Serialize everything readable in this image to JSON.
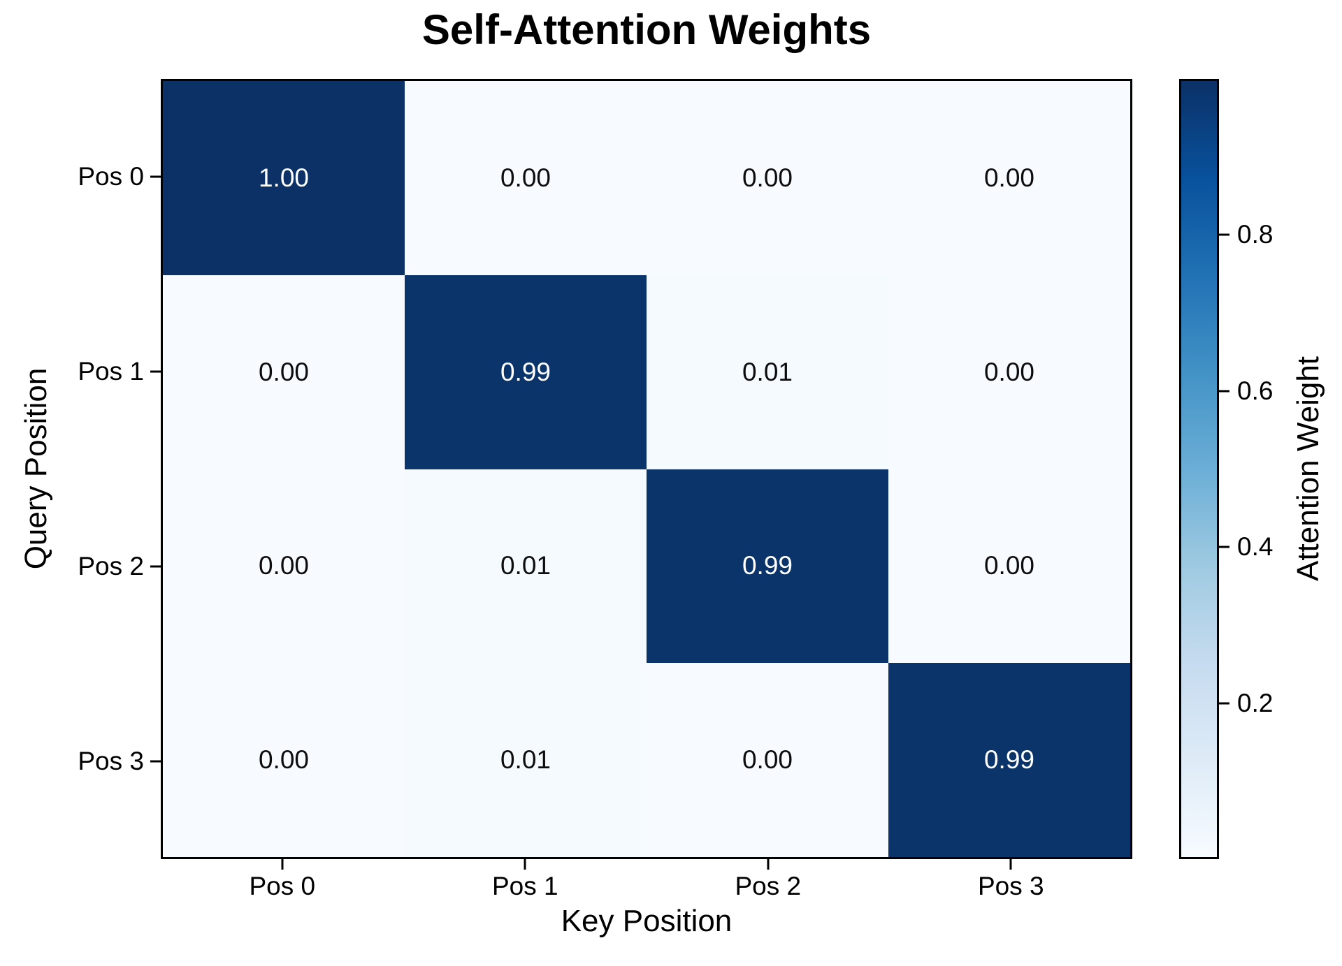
{
  "chart_data": {
    "type": "heatmap",
    "title": "Self-Attention Weights",
    "xlabel": "Key Position",
    "ylabel": "Query Position",
    "x_ticklabels": [
      "Pos 0",
      "Pos 1",
      "Pos 2",
      "Pos 3"
    ],
    "y_ticklabels": [
      "Pos 0",
      "Pos 1",
      "Pos 2",
      "Pos 3"
    ],
    "values": [
      [
        1.0,
        0.0,
        0.0,
        0.0
      ],
      [
        0.0,
        0.99,
        0.01,
        0.0
      ],
      [
        0.0,
        0.01,
        0.99,
        0.0
      ],
      [
        0.0,
        0.01,
        0.0,
        0.99
      ]
    ],
    "cell_labels": [
      [
        "1.00",
        "0.00",
        "0.00",
        "0.00"
      ],
      [
        "0.00",
        "0.99",
        "0.01",
        "0.00"
      ],
      [
        "0.00",
        "0.01",
        "0.99",
        "0.00"
      ],
      [
        "0.00",
        "0.01",
        "0.00",
        "0.99"
      ]
    ],
    "grid": false,
    "legend_position": "colorbar-right",
    "colormap": {
      "name": "Blues",
      "stops": [
        {
          "v": 0.0,
          "color": "#f7fbff"
        },
        {
          "v": 0.125,
          "color": "#deebf7"
        },
        {
          "v": 0.25,
          "color": "#c6dbef"
        },
        {
          "v": 0.375,
          "color": "#9ecae1"
        },
        {
          "v": 0.5,
          "color": "#6baed6"
        },
        {
          "v": 0.625,
          "color": "#4292c6"
        },
        {
          "v": 0.75,
          "color": "#2171b5"
        },
        {
          "v": 0.875,
          "color": "#08519c"
        },
        {
          "v": 1.0,
          "color": "#0b3167"
        }
      ]
    },
    "colorbar": {
      "label": "Attention Weight",
      "vmin": 0,
      "vmax": 1,
      "ticks": [
        {
          "value": 0.8,
          "label": "0.8"
        },
        {
          "value": 0.6,
          "label": "0.6"
        },
        {
          "value": 0.4,
          "label": "0.4"
        },
        {
          "value": 0.2,
          "label": "0.2"
        }
      ]
    },
    "cell_text_colors": {
      "on_dark": "#ffffff",
      "on_light": "#0d0d0d",
      "dark_threshold": 0.5
    }
  }
}
